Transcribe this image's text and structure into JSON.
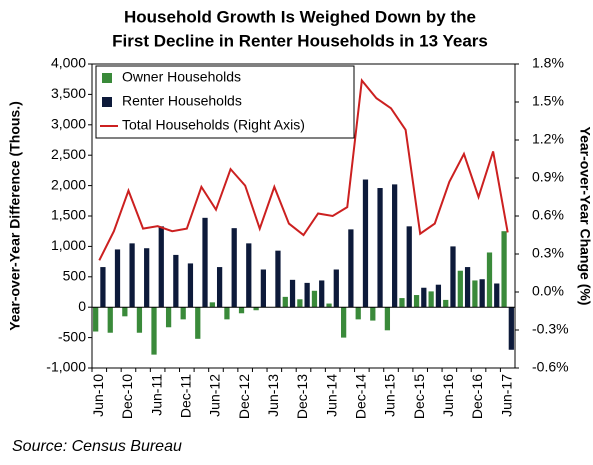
{
  "chart_data": {
    "type": "bar",
    "title": "Household Growth Is Weighed Down by the",
    "subtitle": "First Decline in Renter Households in 13 Years",
    "y_label": "Year-over-Year Difference (Thous.)",
    "y2_label": "Year-over-Year Change (%)",
    "source": "Source: Census Bureau",
    "categories": [
      "Jun-10",
      null,
      "Dec-10",
      null,
      "Jun-11",
      null,
      "Dec-11",
      null,
      "Jun-12",
      null,
      "Dec-12",
      null,
      "Jun-13",
      null,
      "Dec-13",
      null,
      "Jun-14",
      null,
      "Dec-14",
      null,
      "Jun-15",
      null,
      "Dec-15",
      null,
      "Jun-16",
      null,
      "Dec-16",
      null,
      "Jun-17"
    ],
    "series": [
      {
        "name": "Owner Households",
        "color": "#3a8a3a",
        "values": [
          -400,
          -420,
          -150,
          -420,
          -780,
          -330,
          -200,
          -520,
          80,
          -200,
          -100,
          -50,
          0,
          170,
          130,
          270,
          60,
          -500,
          -200,
          -220,
          -380,
          150,
          200,
          260,
          120,
          600,
          440,
          900,
          1250
        ]
      },
      {
        "name": "Renter Households",
        "color": "#0d1a3a",
        "values": [
          660,
          950,
          1050,
          970,
          1330,
          860,
          720,
          1470,
          660,
          1300,
          1050,
          620,
          930,
          450,
          400,
          440,
          620,
          1280,
          2100,
          1960,
          2020,
          1330,
          320,
          370,
          1000,
          660,
          460,
          390,
          -700
        ]
      },
      {
        "name": "Total Households (Right Axis)",
        "color": "#cc2020",
        "axis": "y2",
        "values": [
          0.25,
          0.48,
          0.8,
          0.5,
          0.52,
          0.48,
          0.5,
          0.83,
          0.65,
          0.97,
          0.84,
          0.5,
          0.83,
          0.54,
          0.45,
          0.62,
          0.6,
          0.67,
          1.67,
          1.53,
          1.45,
          1.28,
          0.46,
          0.54,
          0.87,
          1.09,
          0.75,
          1.11,
          0.47
        ]
      }
    ],
    "ylim": [
      -1000,
      4000
    ],
    "yticks": [
      {
        "value": -1000,
        "label": "-1,000"
      },
      -500,
      0,
      500,
      {
        "value": 1000,
        "label": "1,000"
      },
      {
        "value": 1500,
        "label": "1,500"
      },
      {
        "value": 2000,
        "label": "2,000"
      },
      {
        "value": 2500,
        "label": "2,500"
      },
      {
        "value": 3000,
        "label": "3,000"
      },
      {
        "value": 3500,
        "label": "3,500"
      },
      {
        "value": 4000,
        "label": "4,000"
      }
    ],
    "y2lim": [
      -0.6,
      1.8
    ],
    "y2ticks": [
      {
        "value": -0.6,
        "label": "-0.6%"
      },
      {
        "value": -0.3,
        "label": "-0.3%"
      },
      {
        "value": 0,
        "label": "0.0%"
      },
      {
        "value": 0.3,
        "label": "0.3%"
      },
      {
        "value": 0.6,
        "label": "0.6%"
      },
      {
        "value": 0.9,
        "label": "0.9%"
      },
      {
        "value": 1.2,
        "label": "1.2%"
      },
      {
        "value": 1.5,
        "label": "1.5%"
      },
      {
        "value": 1.8,
        "label": "1.8%"
      }
    ],
    "legend": "upper left"
  }
}
